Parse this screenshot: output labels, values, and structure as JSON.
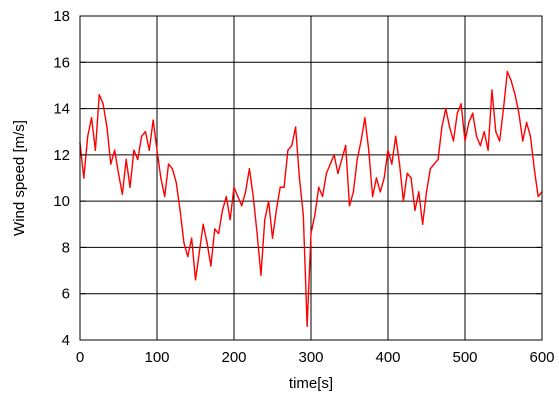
{
  "chart_data": {
    "type": "line",
    "title": "",
    "xlabel": "time[s]",
    "ylabel": "Wind speed [m/s]",
    "xlim": [
      0,
      600
    ],
    "ylim": [
      4,
      18
    ],
    "x_ticks": [
      "0",
      "100",
      "200",
      "300",
      "400",
      "500",
      "600"
    ],
    "y_ticks": [
      "4",
      "6",
      "8",
      "10",
      "12",
      "14",
      "16",
      "18"
    ],
    "grid": true,
    "legend": "none",
    "series": [
      {
        "color": "#ff0000",
        "x": [
          0,
          5,
          10,
          15,
          20,
          25,
          30,
          35,
          40,
          45,
          50,
          55,
          60,
          65,
          70,
          75,
          80,
          85,
          90,
          95,
          100,
          105,
          110,
          115,
          120,
          125,
          130,
          135,
          140,
          145,
          150,
          155,
          160,
          165,
          170,
          175,
          180,
          185,
          190,
          195,
          200,
          205,
          210,
          215,
          220,
          225,
          230,
          235,
          240,
          245,
          250,
          255,
          260,
          265,
          270,
          275,
          280,
          285,
          290,
          295,
          300,
          305,
          310,
          315,
          320,
          325,
          330,
          335,
          340,
          345,
          350,
          355,
          360,
          365,
          370,
          375,
          380,
          385,
          390,
          395,
          400,
          405,
          410,
          415,
          420,
          425,
          430,
          435,
          440,
          445,
          450,
          455,
          460,
          465,
          470,
          475,
          480,
          485,
          490,
          495,
          500,
          505,
          510,
          515,
          520,
          525,
          530,
          535,
          540,
          545,
          550,
          555,
          560,
          565,
          570,
          575,
          580,
          585,
          590,
          595,
          600
        ],
        "y": [
          12.5,
          11.0,
          12.8,
          13.6,
          12.2,
          14.6,
          14.2,
          13.2,
          11.6,
          12.2,
          11.2,
          10.3,
          11.8,
          10.6,
          12.2,
          11.8,
          12.8,
          13.0,
          12.2,
          13.5,
          12.2,
          11.0,
          10.2,
          11.6,
          11.4,
          10.8,
          9.6,
          8.2,
          7.6,
          8.4,
          6.6,
          7.8,
          9.0,
          8.2,
          7.2,
          8.8,
          8.6,
          9.6,
          10.2,
          9.2,
          10.6,
          10.2,
          9.8,
          10.4,
          11.4,
          10.2,
          8.6,
          6.8,
          9.2,
          10.0,
          8.4,
          9.6,
          10.6,
          10.6,
          12.2,
          12.4,
          13.2,
          11.0,
          9.4,
          4.6,
          8.6,
          9.4,
          10.6,
          10.2,
          11.2,
          11.6,
          12.0,
          11.2,
          11.8,
          12.4,
          9.8,
          10.4,
          11.8,
          12.6,
          13.6,
          12.2,
          10.2,
          11.0,
          10.4,
          11.0,
          12.2,
          11.6,
          12.8,
          11.6,
          10.0,
          11.2,
          11.0,
          9.6,
          10.4,
          9.0,
          10.4,
          11.4,
          11.6,
          11.8,
          13.2,
          14.0,
          13.2,
          12.6,
          13.8,
          14.2,
          12.6,
          13.4,
          13.8,
          12.8,
          12.4,
          13.0,
          12.2,
          14.8,
          13.0,
          12.6,
          14.0,
          15.6,
          15.2,
          14.6,
          13.8,
          12.6,
          13.4,
          12.8,
          11.4,
          10.2,
          10.4
        ]
      }
    ]
  }
}
